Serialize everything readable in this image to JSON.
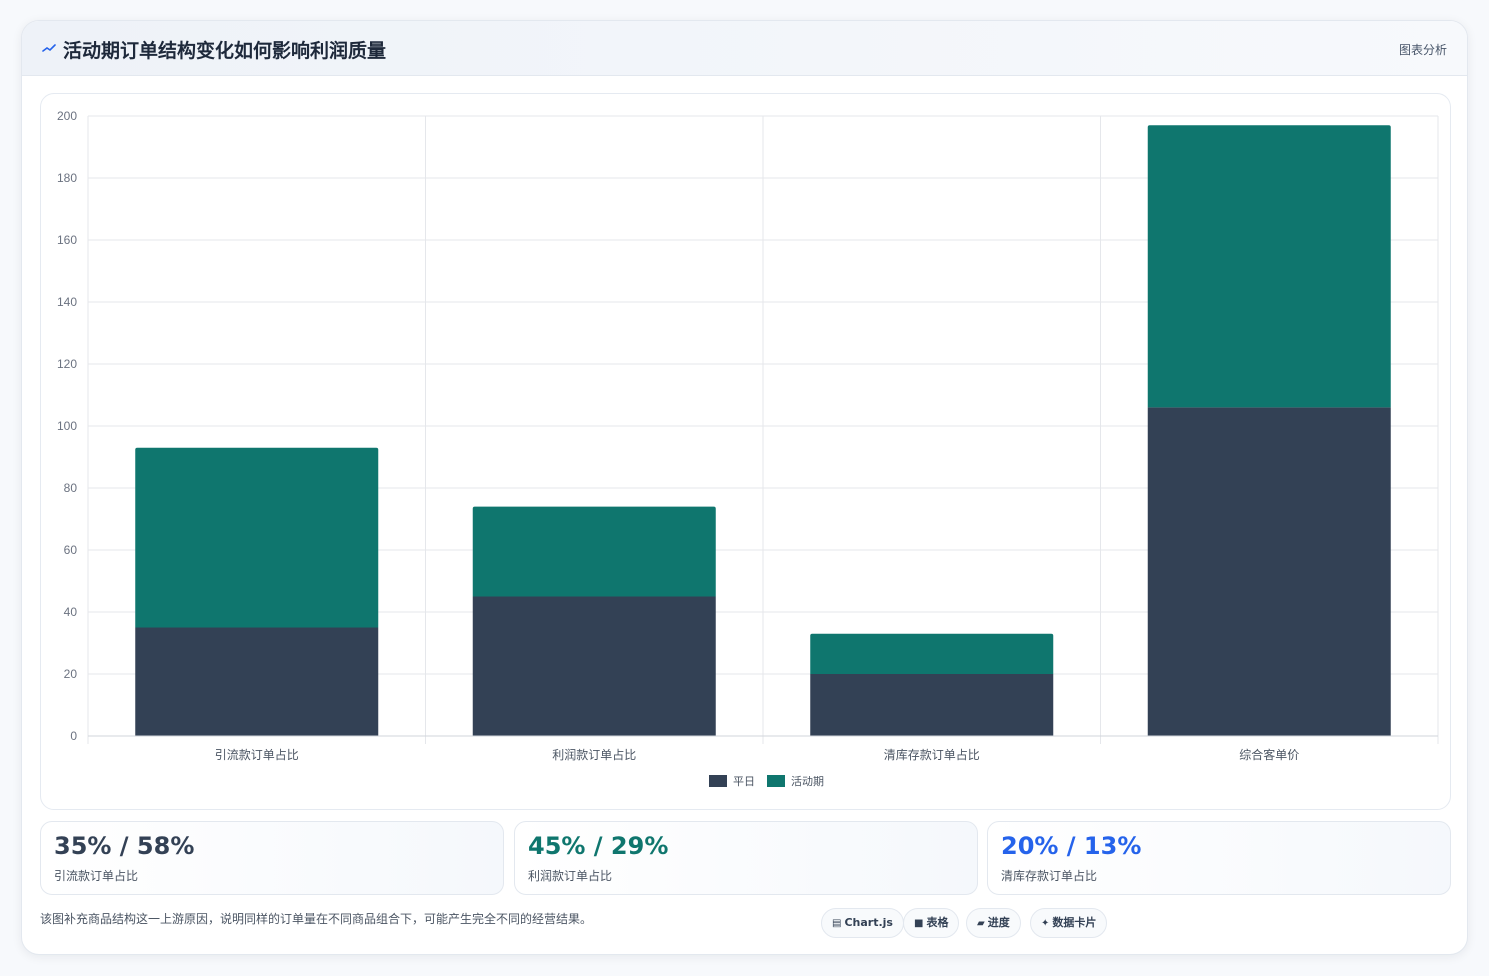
{
  "header": {
    "title": "活动期订单结构变化如何影响利润质量",
    "link_label": "图表分析",
    "icon": "spark-icon"
  },
  "chart_data": {
    "type": "bar",
    "stacked": true,
    "categories": [
      "引流款订单占比",
      "利润款订单占比",
      "清库存款订单占比",
      "综合客单价"
    ],
    "series": [
      {
        "name": "平日",
        "values": [
          35,
          45,
          20,
          106
        ],
        "color": "#334155"
      },
      {
        "name": "活动期",
        "values": [
          58,
          29,
          13,
          91
        ],
        "color": "#0f766e"
      }
    ],
    "ylim": [
      0,
      200
    ],
    "yticks": [
      0,
      20,
      40,
      60,
      80,
      100,
      120,
      140,
      160,
      180,
      200
    ],
    "grid": true,
    "legend": "bottom"
  },
  "kpis": [
    {
      "value": "35% / 58%",
      "label": "引流款订单占比",
      "color": "#334155"
    },
    {
      "value": "45% / 29%",
      "label": "利润款订单占比",
      "color": "#0f766e"
    },
    {
      "value": "20% / 13%",
      "label": "清库存款订单占比",
      "color": "#2563eb"
    }
  ],
  "footer": {
    "note": "该图补充商品结构这一上游原因，说明同样的订单量在不同商品组合下，可能产生完全不同的经营结果。"
  },
  "chips": [
    {
      "icon": "chart-icon",
      "glyph": "▤",
      "label": "Chart.js"
    },
    {
      "icon": "table-icon",
      "glyph": "■",
      "label": "表格"
    },
    {
      "icon": "progress-icon",
      "glyph": "▰",
      "label": "进度"
    },
    {
      "icon": "sparkle-icon",
      "glyph": "✦",
      "label": "数据卡片"
    }
  ]
}
